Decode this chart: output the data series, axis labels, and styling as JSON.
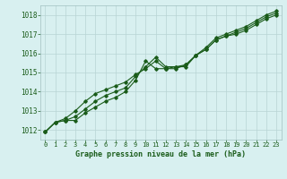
{
  "title": "Graphe pression niveau de la mer (hPa)",
  "bg_color": "#d8f0f0",
  "grid_color": "#b8d4d4",
  "line_color": "#1a5c1a",
  "x_ticks": [
    0,
    1,
    2,
    3,
    4,
    5,
    6,
    7,
    8,
    9,
    10,
    11,
    12,
    13,
    14,
    15,
    16,
    17,
    18,
    19,
    20,
    21,
    22,
    23
  ],
  "ylim": [
    1011.5,
    1018.5
  ],
  "yticks": [
    1012,
    1013,
    1014,
    1015,
    1016,
    1017,
    1018
  ],
  "series1": [
    1011.9,
    1012.4,
    1012.5,
    1012.7,
    1013.1,
    1013.5,
    1013.8,
    1014.0,
    1014.2,
    1014.8,
    1015.3,
    1015.8,
    1015.3,
    1015.3,
    1015.3,
    1015.9,
    1016.2,
    1016.7,
    1016.9,
    1017.1,
    1017.3,
    1017.6,
    1017.9,
    1018.1
  ],
  "series2": [
    1011.9,
    1012.4,
    1012.6,
    1013.0,
    1013.5,
    1013.9,
    1014.1,
    1014.3,
    1014.5,
    1014.9,
    1015.2,
    1015.6,
    1015.2,
    1015.2,
    1015.4,
    1015.9,
    1016.3,
    1016.8,
    1017.0,
    1017.2,
    1017.4,
    1017.7,
    1018.0,
    1018.2
  ],
  "series3": [
    1011.9,
    1012.4,
    1012.5,
    1012.5,
    1012.9,
    1013.2,
    1013.5,
    1013.7,
    1014.0,
    1014.6,
    1015.6,
    1015.2,
    1015.2,
    1015.3,
    1015.4,
    1015.9,
    1016.2,
    1016.7,
    1016.9,
    1017.0,
    1017.2,
    1017.5,
    1017.8,
    1018.0
  ]
}
